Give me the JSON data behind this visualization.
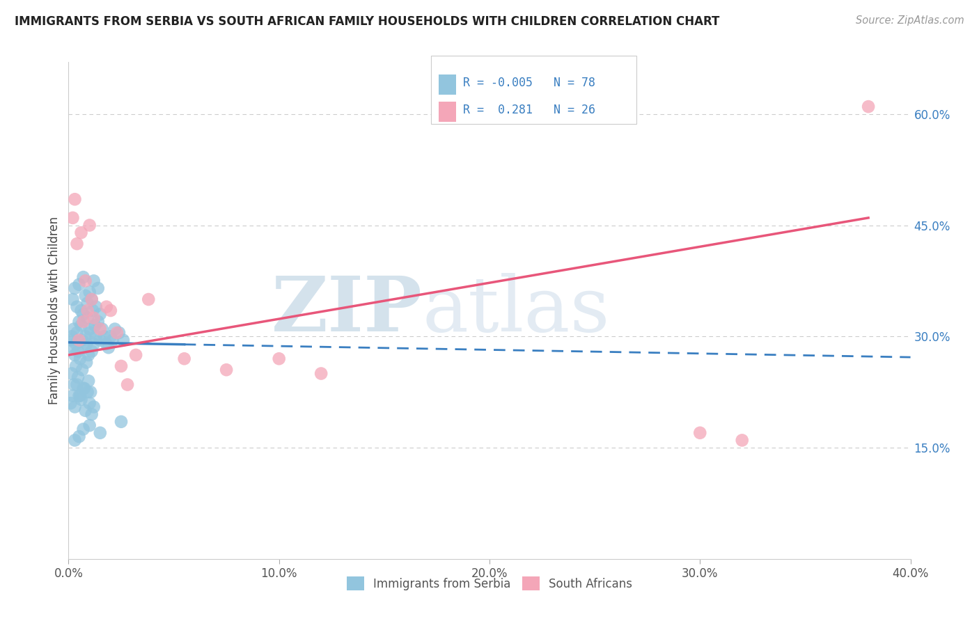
{
  "title": "IMMIGRANTS FROM SERBIA VS SOUTH AFRICAN FAMILY HOUSEHOLDS WITH CHILDREN CORRELATION CHART",
  "source": "Source: ZipAtlas.com",
  "ylabel": "Family Households with Children",
  "xlim": [
    0.0,
    40.0
  ],
  "ylim": [
    0.0,
    67.0
  ],
  "x_ticks": [
    0.0,
    10.0,
    20.0,
    30.0,
    40.0
  ],
  "y_ticks_right": [
    15.0,
    30.0,
    45.0,
    60.0
  ],
  "x_tick_labels": [
    "0.0%",
    "10.0%",
    "20.0%",
    "30.0%",
    "40.0%"
  ],
  "y_tick_labels_right": [
    "15.0%",
    "30.0%",
    "45.0%",
    "60.0%"
  ],
  "legend_label1": "Immigrants from Serbia",
  "legend_label2": "South Africans",
  "legend_R1": "-0.005",
  "legend_N1": "78",
  "legend_R2": "0.281",
  "legend_N2": "26",
  "blue_color": "#92c5de",
  "pink_color": "#f4a6b8",
  "trend_blue": "#3a7fc1",
  "trend_pink": "#e8567a",
  "watermark_color": "#d0e4f0",
  "serbia_x": [
    0.1,
    0.15,
    0.2,
    0.25,
    0.3,
    0.35,
    0.4,
    0.45,
    0.5,
    0.55,
    0.6,
    0.65,
    0.7,
    0.75,
    0.8,
    0.85,
    0.9,
    0.95,
    1.0,
    1.05,
    1.1,
    1.15,
    1.2,
    1.25,
    1.3,
    1.4,
    1.5,
    1.6,
    1.7,
    1.8,
    1.9,
    2.0,
    2.1,
    2.2,
    2.4,
    2.6,
    0.2,
    0.3,
    0.4,
    0.5,
    0.6,
    0.7,
    0.8,
    0.9,
    1.0,
    1.1,
    1.2,
    1.3,
    1.4,
    1.5,
    0.15,
    0.25,
    0.35,
    0.45,
    0.55,
    0.65,
    0.75,
    0.85,
    0.95,
    1.05,
    0.1,
    0.2,
    0.3,
    0.4,
    0.5,
    0.6,
    0.7,
    0.8,
    0.9,
    1.0,
    1.1,
    1.2,
    0.5,
    1.5,
    2.5,
    0.3,
    0.7,
    1.0
  ],
  "serbia_y": [
    29.5,
    30.0,
    28.5,
    31.0,
    27.5,
    29.0,
    30.5,
    28.0,
    32.0,
    27.0,
    31.5,
    29.5,
    33.0,
    28.5,
    30.0,
    29.0,
    32.5,
    27.5,
    31.0,
    30.5,
    28.0,
    33.5,
    29.0,
    31.5,
    30.0,
    32.0,
    29.5,
    31.0,
    30.0,
    29.0,
    28.5,
    30.0,
    29.5,
    31.0,
    30.5,
    29.5,
    35.0,
    36.5,
    34.0,
    37.0,
    33.5,
    38.0,
    35.5,
    34.5,
    36.0,
    35.0,
    37.5,
    34.0,
    36.5,
    33.0,
    25.0,
    23.5,
    26.0,
    24.5,
    22.0,
    25.5,
    23.0,
    26.5,
    24.0,
    22.5,
    21.0,
    22.0,
    20.5,
    23.5,
    22.0,
    21.5,
    23.0,
    20.0,
    22.5,
    21.0,
    19.5,
    20.5,
    16.5,
    17.0,
    18.5,
    16.0,
    17.5,
    18.0
  ],
  "sa_x": [
    0.2,
    0.4,
    0.6,
    0.8,
    1.0,
    1.2,
    1.5,
    1.8,
    2.0,
    2.3,
    2.8,
    3.2,
    3.8,
    5.5,
    7.5,
    10.0,
    12.0,
    30.0,
    32.0,
    38.0,
    0.3,
    0.5,
    0.7,
    0.9,
    1.1,
    2.5
  ],
  "sa_y": [
    46.0,
    42.5,
    44.0,
    37.5,
    45.0,
    32.5,
    31.0,
    34.0,
    33.5,
    30.5,
    23.5,
    27.5,
    35.0,
    27.0,
    25.5,
    27.0,
    25.0,
    17.0,
    16.0,
    61.0,
    48.5,
    29.5,
    32.0,
    33.5,
    35.0,
    26.0
  ],
  "blue_trend_x0": 0.0,
  "blue_trend_y0": 29.2,
  "blue_trend_x1": 40.0,
  "blue_trend_y1": 27.2,
  "pink_trend_x0": 0.0,
  "pink_trend_y0": 27.5,
  "pink_trend_x1": 38.0,
  "pink_trend_y1": 46.0
}
